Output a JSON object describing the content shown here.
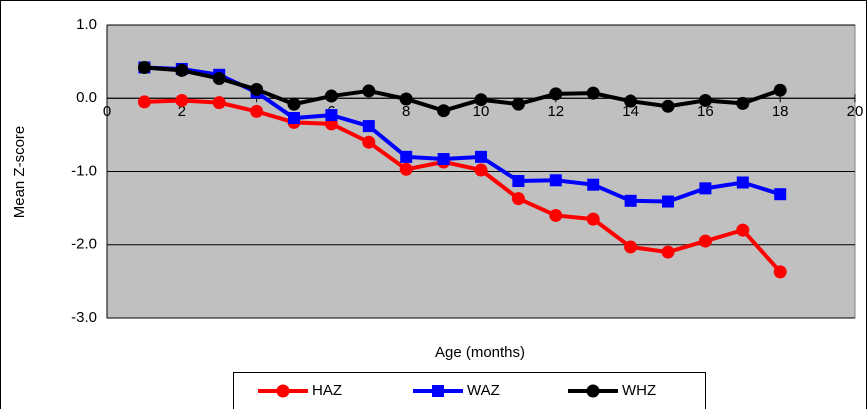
{
  "chart_data": {
    "type": "line",
    "y_label": "Mean Z-score",
    "x_label": "Age (months)",
    "x": [
      1,
      2,
      3,
      4,
      5,
      6,
      7,
      8,
      9,
      10,
      11,
      12,
      13,
      14,
      15,
      16,
      17,
      18
    ],
    "series": [
      {
        "name": "HAZ",
        "color": "#ff0000",
        "marker": "circle",
        "values": [
          -0.05,
          -0.03,
          -0.06,
          -0.18,
          -0.33,
          -0.35,
          -0.6,
          -0.97,
          -0.87,
          -0.98,
          -1.37,
          -1.6,
          -1.65,
          -2.03,
          -2.1,
          -1.95,
          -1.8,
          -2.37
        ]
      },
      {
        "name": "WAZ",
        "color": "#0000ff",
        "marker": "square",
        "values": [
          0.42,
          0.4,
          0.32,
          0.08,
          -0.27,
          -0.23,
          -0.38,
          -0.8,
          -0.83,
          -0.8,
          -1.13,
          -1.12,
          -1.18,
          -1.4,
          -1.41,
          -1.23,
          -1.15,
          -1.31
        ]
      },
      {
        "name": "WHZ",
        "color": "#000000",
        "marker": "circle",
        "values": [
          0.42,
          0.38,
          0.27,
          0.12,
          -0.08,
          0.03,
          0.1,
          -0.01,
          -0.17,
          -0.02,
          -0.08,
          0.06,
          0.07,
          -0.04,
          -0.11,
          -0.03,
          -0.07,
          0.11
        ]
      }
    ],
    "xlim": [
      0,
      20
    ],
    "xticks": [
      0,
      2,
      4,
      6,
      8,
      10,
      12,
      14,
      16,
      18,
      20
    ],
    "ylim": [
      -3,
      1
    ],
    "yticks": [
      {
        "value": -3,
        "label": "-3.0"
      },
      {
        "value": -2,
        "label": "-2.0"
      },
      {
        "value": -1,
        "label": "-1.0"
      },
      {
        "value": 0,
        "label": "0.0"
      },
      {
        "value": 1,
        "label": "1.0"
      }
    ],
    "grid": true,
    "plot_background": "#c0c0c0",
    "legend": "bottom"
  }
}
